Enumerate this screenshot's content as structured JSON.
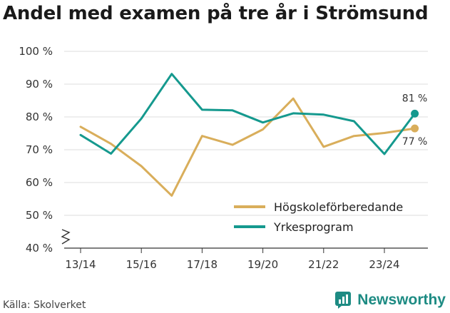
{
  "title": "Andel med examen på tre år i Strömsund",
  "source": "Källa: Skolverket",
  "brand": {
    "name": "Newsworthy",
    "icon": "newsworthy-logo-icon",
    "color": "#1d8b83"
  },
  "chart_data": {
    "type": "line",
    "title": "Andel med examen på tre år i Strömsund",
    "xlabel": "",
    "ylabel": "",
    "ylim": [
      40,
      100
    ],
    "y_ticks": [
      40,
      50,
      60,
      70,
      80,
      90,
      100
    ],
    "y_tick_labels": [
      "40 %",
      "50 %",
      "60 %",
      "70 %",
      "80 %",
      "90 %",
      "100 %"
    ],
    "y_axis_break": true,
    "x": [
      "13/14",
      "14/15",
      "15/16",
      "16/17",
      "17/18",
      "18/19",
      "19/20",
      "20/21",
      "21/22",
      "22/23",
      "23/24",
      "24/25"
    ],
    "x_tick_labels": [
      "13/14",
      "15/16",
      "17/18",
      "19/20",
      "21/22",
      "23/24"
    ],
    "grid": "horizontal",
    "legend_position": "bottom-right",
    "series": [
      {
        "name": "Högskoleförberedande",
        "color": "#d9ae5b",
        "values": [
          77,
          71.8,
          65,
          56,
          74.2,
          71.5,
          76.2,
          85.6,
          70.9,
          74.2,
          75.1,
          76.5
        ],
        "end_label": "77 %"
      },
      {
        "name": "Yrkesprogram",
        "color": "#15998e",
        "values": [
          74.5,
          68.8,
          79.5,
          93.1,
          82.2,
          82,
          78.3,
          81.1,
          80.7,
          78.7,
          68.7,
          81
        ],
        "end_label": "81 %"
      }
    ]
  }
}
